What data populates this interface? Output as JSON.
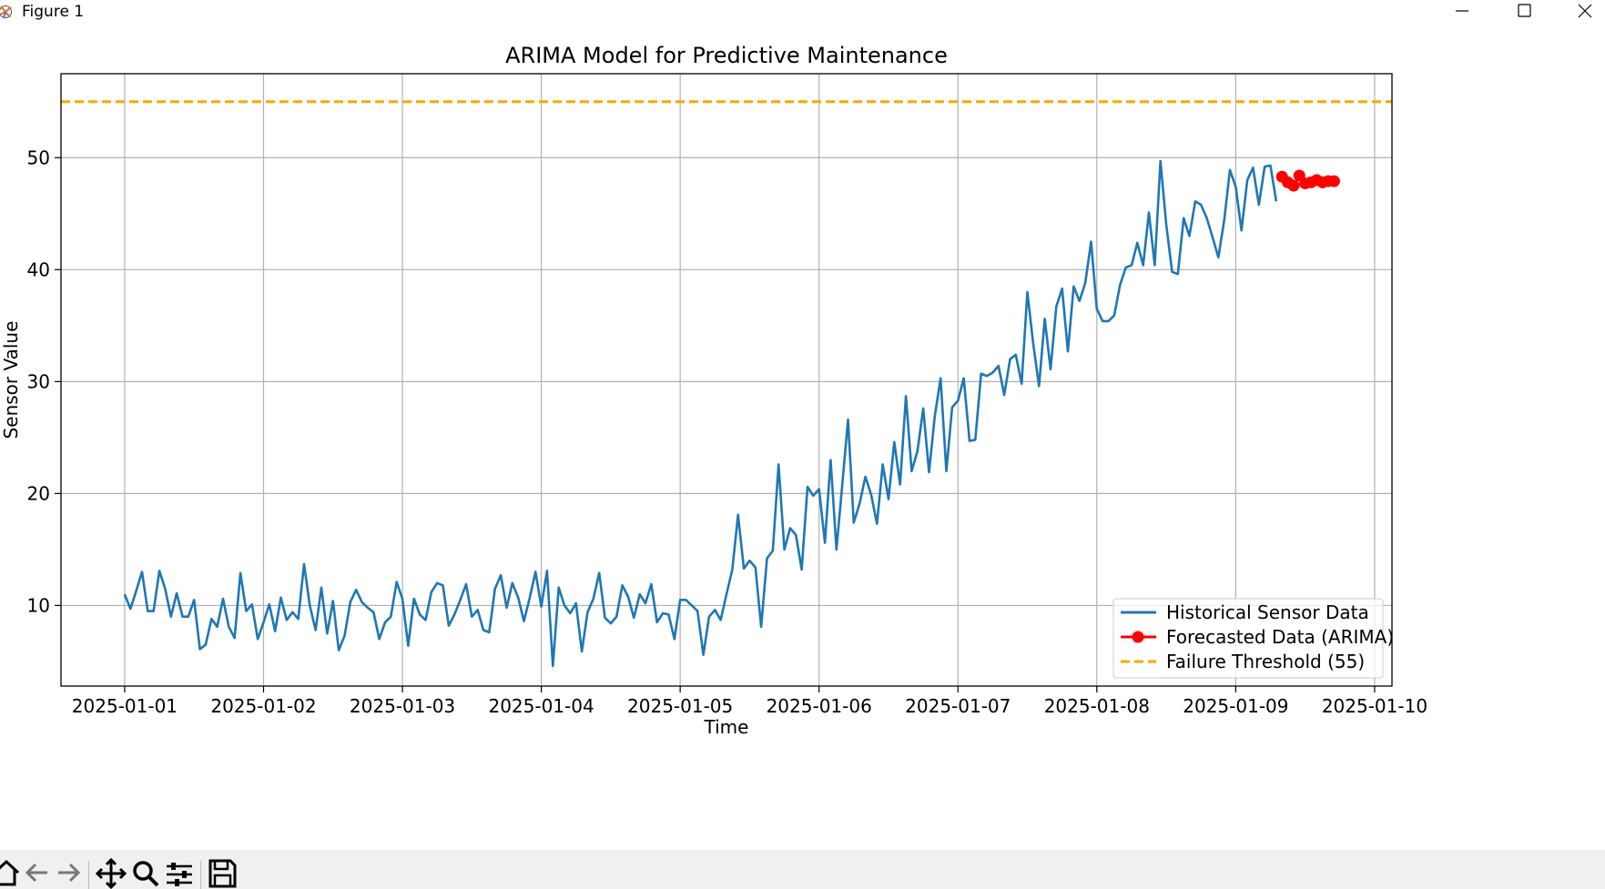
{
  "window": {
    "title": "Figure 1",
    "controls": [
      "minimize",
      "maximize",
      "close"
    ]
  },
  "toolbar": {
    "buttons": [
      "home-icon",
      "back-arrow-icon",
      "forward-arrow-icon",
      "pan-icon",
      "zoom-icon",
      "configure-subplots-icon",
      "save-icon"
    ]
  },
  "chart_data": {
    "type": "line",
    "title": "ARIMA Model for Predictive Maintenance",
    "xlabel": "Time",
    "ylabel": "Sensor Value",
    "xlim": [
      "2024-12-31T13:00",
      "2025-01-10T03:00"
    ],
    "ylim": [
      2.8,
      57.5
    ],
    "xticks": [
      "2025-01-01",
      "2025-01-02",
      "2025-01-03",
      "2025-01-04",
      "2025-01-05",
      "2025-01-06",
      "2025-01-07",
      "2025-01-08",
      "2025-01-09",
      "2025-01-10"
    ],
    "yticks": [
      10,
      20,
      30,
      40,
      50
    ],
    "grid": true,
    "legend_position": "lower-right",
    "series": [
      {
        "name": "Historical Sensor Data",
        "color": "#1f77b4",
        "style": "solid",
        "x_start": "2025-01-01T00:00",
        "x_step_hours": 1,
        "values": [
          11.0,
          9.7,
          11.3,
          13.0,
          9.5,
          9.5,
          13.1,
          11.5,
          9.0,
          11.1,
          9.0,
          9.0,
          10.5,
          6.1,
          6.5,
          8.8,
          8.1,
          10.6,
          8.1,
          7.1,
          12.9,
          9.5,
          10.1,
          7.0,
          8.5,
          10.1,
          7.7,
          10.7,
          8.7,
          9.4,
          8.8,
          13.7,
          10.0,
          7.8,
          11.6,
          7.5,
          10.4,
          6.0,
          7.3,
          10.3,
          11.4,
          10.3,
          9.8,
          9.4,
          7.0,
          8.5,
          9.0,
          12.1,
          10.6,
          6.4,
          10.6,
          9.2,
          8.7,
          11.2,
          12.0,
          11.8,
          8.2,
          9.2,
          10.5,
          11.9,
          9.0,
          9.6,
          7.8,
          7.6,
          11.5,
          12.7,
          9.8,
          12.0,
          10.7,
          8.6,
          10.7,
          13.0,
          9.9,
          13.1,
          4.6,
          11.6,
          10.0,
          9.3,
          10.2,
          5.9,
          9.4,
          10.6,
          12.9,
          8.9,
          8.4,
          9.0,
          11.8,
          10.8,
          8.9,
          11.0,
          10.2,
          11.9,
          8.5,
          9.3,
          9.2,
          7.0,
          10.5,
          10.5,
          10.0,
          9.5,
          5.6,
          9.0,
          9.6,
          8.7,
          11.0,
          13.2,
          18.1,
          13.3,
          14.0,
          13.4,
          8.1,
          14.2,
          14.9,
          22.6,
          15.0,
          16.9,
          16.3,
          13.2,
          20.6,
          19.8,
          20.4,
          15.6,
          23.0,
          15.0,
          20.7,
          26.6,
          17.4,
          19.1,
          21.5,
          19.9,
          17.3,
          22.6,
          19.5,
          24.6,
          20.8,
          28.7,
          22.0,
          23.8,
          27.6,
          21.9,
          26.9,
          30.3,
          22.0,
          27.7,
          28.3,
          30.3,
          24.7,
          24.8,
          30.7,
          30.5,
          30.8,
          31.4,
          28.8,
          32.0,
          32.4,
          29.8,
          38.0,
          33.4,
          29.6,
          35.6,
          31.1,
          36.7,
          38.3,
          32.7,
          38.5,
          37.2,
          38.8,
          42.5,
          36.5,
          35.4,
          35.4,
          35.9,
          38.6,
          40.2,
          40.4,
          42.4,
          40.4,
          45.1,
          40.4,
          49.7,
          44.0,
          39.8,
          39.6,
          44.6,
          43.0,
          46.1,
          45.8,
          44.6,
          42.9,
          41.1,
          44.4,
          48.9,
          47.4,
          43.5,
          48.0,
          49.1,
          45.8,
          49.2,
          49.3,
          46.1
        ]
      },
      {
        "name": "Forecasted Data (ARIMA)",
        "color": "#ff0000",
        "style": "solid-with-circle-markers",
        "x_start": "2025-01-09T08:00",
        "x_step_hours": 1,
        "values": [
          48.3,
          47.8,
          47.5,
          48.4,
          47.7,
          47.8,
          48.0,
          47.8,
          47.9,
          47.9
        ]
      },
      {
        "name": "Failure Threshold (55)",
        "color": "#ffa500",
        "style": "dashed",
        "constant": 55
      }
    ]
  }
}
